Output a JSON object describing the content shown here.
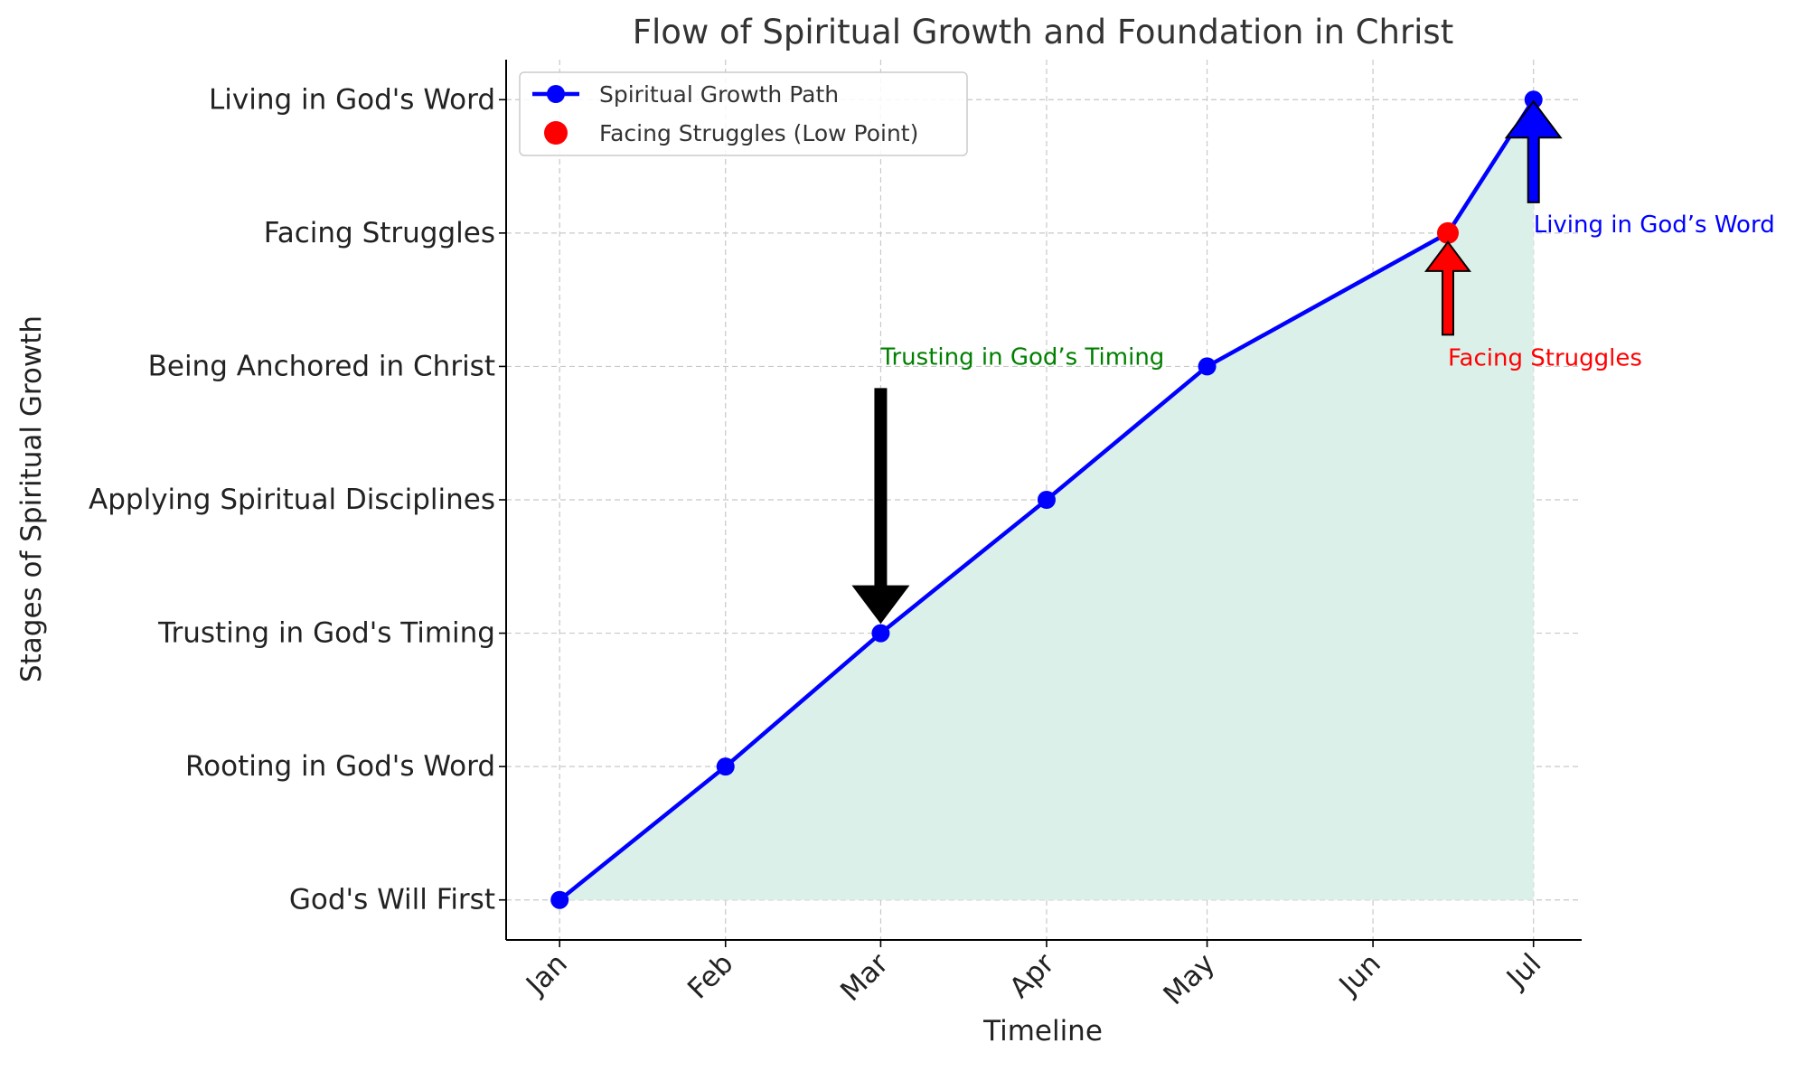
{
  "chart_data": {
    "type": "line",
    "title": "Flow of Spiritual Growth and Foundation in Christ",
    "xlabel": "Timeline",
    "ylabel": "Stages of Spiritual Growth",
    "x_axis": {
      "type": "date",
      "tick_labels": [
        "Jan",
        "Feb",
        "Mar",
        "Apr",
        "May",
        "Jun",
        "Jul"
      ],
      "tick_dates": [
        "2024-01-01",
        "2024-02-01",
        "2024-03-01",
        "2024-04-01",
        "2024-05-01",
        "2024-06-01",
        "2024-07-01"
      ],
      "range": [
        "2023-12-22",
        "2024-07-10"
      ]
    },
    "y_axis": {
      "categories": [
        "God's Will First",
        "Rooting in God's Word",
        "Trusting in God's Timing",
        "Applying Spiritual Disciplines",
        "Being Anchored in Christ",
        "Facing Struggles",
        "Living in God's Word"
      ]
    },
    "grid": true,
    "legend_position": "top-left",
    "fill_color": "#dcf0ea",
    "series": [
      {
        "name": "Spiritual Growth Path",
        "color": "#0000ff",
        "marker": "circle",
        "points": [
          {
            "x": "2024-01-01",
            "y": "God's Will First"
          },
          {
            "x": "2024-02-01",
            "y": "Rooting in God's Word"
          },
          {
            "x": "2024-03-01",
            "y": "Trusting in God's Timing"
          },
          {
            "x": "2024-04-01",
            "y": "Applying Spiritual Disciplines"
          },
          {
            "x": "2024-05-01",
            "y": "Being Anchored in Christ"
          },
          {
            "x": "2024-06-15",
            "y": "Facing Struggles"
          },
          {
            "x": "2024-07-01",
            "y": "Living in God's Word"
          }
        ]
      },
      {
        "name": "Facing Struggles (Low Point)",
        "color": "#ff0000",
        "marker": "circle",
        "points": [
          {
            "x": "2024-06-15",
            "y": "Facing Struggles"
          }
        ]
      }
    ],
    "annotations": [
      {
        "text": "Trusting in God’s Timing",
        "color": "#008000",
        "arrow_color": "#000000",
        "target": {
          "x": "2024-03-01",
          "y": "Trusting in God's Timing"
        }
      },
      {
        "text": "Facing Struggles",
        "color": "#ff0000",
        "arrow_color": "#ff0000",
        "target": {
          "x": "2024-06-15",
          "y": "Facing Struggles"
        }
      },
      {
        "text": "Living in God’s Word",
        "color": "#0000ff",
        "arrow_color": "#0000ff",
        "target": {
          "x": "2024-07-01",
          "y": "Living in God's Word"
        }
      }
    ]
  }
}
